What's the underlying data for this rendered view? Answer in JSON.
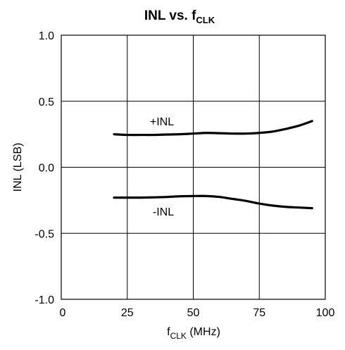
{
  "chart_data": {
    "type": "line",
    "title": {
      "main": "INL vs. f",
      "sub": "CLK"
    },
    "xlabel": {
      "main": "f",
      "sub": "CLK",
      "rest": " (MHz)"
    },
    "ylabel": "INL (LSB)",
    "xlim": [
      0,
      100
    ],
    "ylim": [
      -1.0,
      1.0
    ],
    "x_ticks": [
      0,
      25,
      50,
      75,
      100
    ],
    "x_tick_labels": [
      "0",
      "25",
      "50",
      "75",
      "100"
    ],
    "y_ticks": [
      1.0,
      0.5,
      0.0,
      -0.5,
      -1.0
    ],
    "y_tick_labels": [
      "1.0",
      "0.5",
      "0.0",
      "-0.5",
      "-1.0"
    ],
    "grid": true,
    "series": [
      {
        "name": "+INL",
        "x": [
          20,
          25,
          30,
          35,
          40,
          45,
          50,
          55,
          60,
          65,
          70,
          75,
          80,
          85,
          90,
          95
        ],
        "values": [
          0.25,
          0.245,
          0.245,
          0.245,
          0.248,
          0.25,
          0.255,
          0.26,
          0.258,
          0.255,
          0.255,
          0.26,
          0.27,
          0.29,
          0.315,
          0.35
        ]
      },
      {
        "name": "-INL",
        "x": [
          20,
          25,
          30,
          35,
          40,
          45,
          50,
          55,
          60,
          65,
          70,
          75,
          80,
          85,
          90,
          95
        ],
        "values": [
          -0.23,
          -0.23,
          -0.23,
          -0.228,
          -0.225,
          -0.22,
          -0.218,
          -0.218,
          -0.225,
          -0.24,
          -0.255,
          -0.275,
          -0.29,
          -0.3,
          -0.305,
          -0.31
        ]
      }
    ]
  }
}
